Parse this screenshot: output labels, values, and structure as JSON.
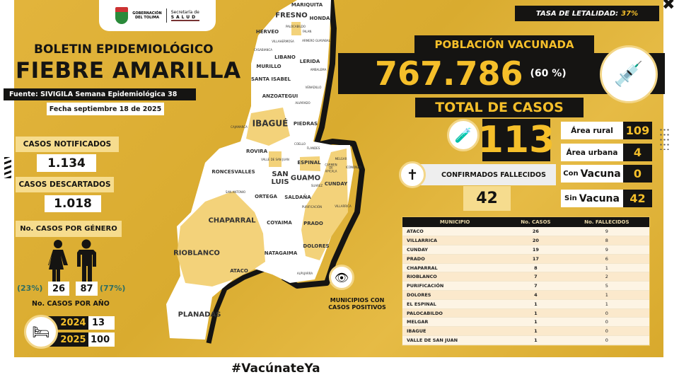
{
  "header": {
    "org1": "GOBERNACIÓN",
    "org2": "DEL TOLIMA",
    "sec1": "Secretaría de",
    "sec2": "SALUD"
  },
  "title": {
    "line1": "BOLETIN EPIDEMIOLÓGICO",
    "line2": "FIEBRE AMARILLA",
    "source": "Fuente: SIVIGILA Semana Epidemiológica 38",
    "date": "Fecha septiembre 18 de 2025"
  },
  "left": {
    "notified_label": "CASOS NOTIFICADOS",
    "notified_value": "1.134",
    "discarded_label": "CASOS DESCARTADOS",
    "discarded_value": "1.018",
    "gender_label": "No. CASOS POR GÉNERO",
    "female_pct": "(23%)",
    "female_value": "26",
    "male_value": "87",
    "male_pct": "(77%)",
    "year_label": "No. CASOS POR AÑO",
    "years": [
      {
        "year": "2024",
        "value": "13"
      },
      {
        "year": "2025",
        "value": "100"
      }
    ]
  },
  "right": {
    "lethality": "TASA DE LETALIDAD:",
    "lethality_value": "37%",
    "vacc_label": "POBLACIÓN VACUNADA",
    "vacc_value": "767.786",
    "vacc_pct": "(60 %)",
    "total_label": "TOTAL DE CASOS",
    "total_value": "113",
    "deaths_label": "CONFIRMADOS FALLECIDOS",
    "deaths_value": "42",
    "stats": [
      {
        "pre": "",
        "label": "Área rural",
        "value": "109"
      },
      {
        "pre": "",
        "label": "Área urbana",
        "value": "4"
      },
      {
        "pre": "Con",
        "label": "Vacuna",
        "value": "0"
      },
      {
        "pre": "Sin",
        "label": "Vacuna",
        "value": "42"
      }
    ]
  },
  "table": {
    "headers": [
      "MUNICIPIO",
      "No. CASOS",
      "No. FALLECIDOS"
    ],
    "rows": [
      [
        "ATACO",
        "26",
        "9"
      ],
      [
        "VILLARRICA",
        "20",
        "8"
      ],
      [
        "CUNDAY",
        "19",
        "9"
      ],
      [
        "PRADO",
        "17",
        "6"
      ],
      [
        "CHAPARRAL",
        "8",
        "1"
      ],
      [
        "RIOBLANCO",
        "7",
        "2"
      ],
      [
        "PURIFICACIÓN",
        "7",
        "5"
      ],
      [
        "DOLORES",
        "4",
        "1"
      ],
      [
        "EL ESPINAL",
        "1",
        "1"
      ],
      [
        "PALOCABILDO",
        "1",
        "0"
      ],
      [
        "MELGAR",
        "1",
        "0"
      ],
      [
        "IBAGUE",
        "1",
        "0"
      ],
      [
        "VALLE DE SAN JUAN",
        "1",
        "0"
      ]
    ]
  },
  "map": {
    "legend": "MUNICIPIOS CON CASOS POSITIVOS",
    "colors": {
      "positive": "#f3d27a",
      "negative": "#ffffff"
    },
    "labels": [
      "MARIQUITA",
      "FRESNO",
      "HONDA",
      "HERVEO",
      "PALOCABILDO",
      "FALAN",
      "VILLAHERMOSA",
      "ARMERO GUAYABAL",
      "CASABIANCA",
      "LIBANO",
      "LERIDA",
      "MURILLO",
      "AMBALEMA",
      "SANTA ISABEL",
      "VENADILLO",
      "ANZOATEGUI",
      "ALVARADO",
      "IBAGUÉ",
      "PIEDRAS",
      "CAJAMARCA",
      "COELLO",
      "FLANDES",
      "ROVIRA",
      "VALLE DE SAN JUAN",
      "ESPINAL",
      "CARMEN DE APICALA",
      "MELGAR",
      "ICONONZO",
      "RONCESVALLES",
      "SAN LUIS",
      "GUAMO",
      "SUAREZ",
      "CUNDAY",
      "SAN ANTONIO",
      "ORTEGA",
      "SALDAÑA",
      "PURIFICACIÓN",
      "VILLARRICA",
      "CHAPARRAL",
      "COYAIMA",
      "PRADO",
      "RIOBLANCO",
      "NATAGAIMA",
      "DOLORES",
      "ATACO",
      "ALPUJARRA",
      "PLANADAS"
    ]
  },
  "footer": {
    "hashtag": "#VacúnateYa"
  }
}
